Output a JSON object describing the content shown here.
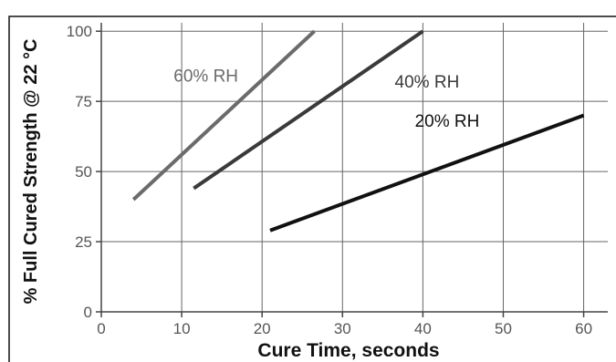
{
  "chart_data": {
    "type": "line",
    "title": "",
    "xlabel": "Cure Time, seconds",
    "ylabel": "% Full Cured Strength @ 22 °C",
    "xlim": [
      0,
      63
    ],
    "ylim": [
      0,
      103
    ],
    "xticks": [
      0,
      10,
      20,
      30,
      40,
      50,
      60
    ],
    "yticks": [
      0,
      25,
      50,
      75,
      100
    ],
    "grid": true,
    "legend": "inline-labels",
    "series": [
      {
        "name": "60% RH",
        "color": "#6b6b6b",
        "points": [
          [
            4,
            40
          ],
          [
            26.5,
            100
          ]
        ],
        "label_pos": [
          9,
          82
        ]
      },
      {
        "name": "40% RH",
        "color": "#3a3a3a",
        "points": [
          [
            11.5,
            44
          ],
          [
            40,
            100
          ]
        ],
        "label_pos": [
          36.5,
          80
        ]
      },
      {
        "name": "20% RH",
        "color": "#111111",
        "points": [
          [
            21,
            29
          ],
          [
            60,
            70
          ]
        ],
        "label_pos": [
          39,
          66
        ]
      }
    ]
  }
}
